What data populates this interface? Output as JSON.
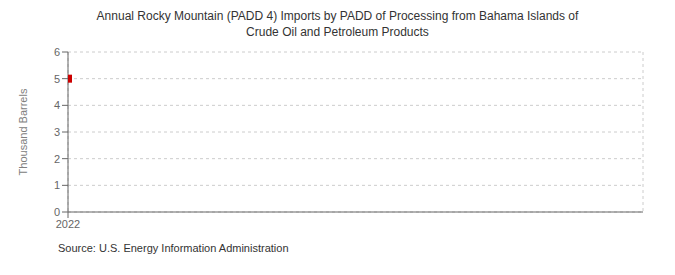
{
  "chart_data": {
    "type": "scatter",
    "title": "Annual Rocky Mountain (PADD 4) Imports by PADD of Processing from Bahama Islands of\nCrude Oil and Petroleum Products",
    "ylabel": "Thousand Barrels",
    "source": "Source: U.S. Energy Information Administration",
    "x": [
      2022
    ],
    "values": [
      5
    ],
    "color": "#CC0000",
    "marker": "square",
    "xlim": [
      2022,
      2023
    ],
    "ylim": [
      0,
      6
    ],
    "xticks": [
      2022
    ],
    "yticks": [
      0,
      1,
      2,
      3,
      4,
      5,
      6
    ],
    "grid": true
  }
}
